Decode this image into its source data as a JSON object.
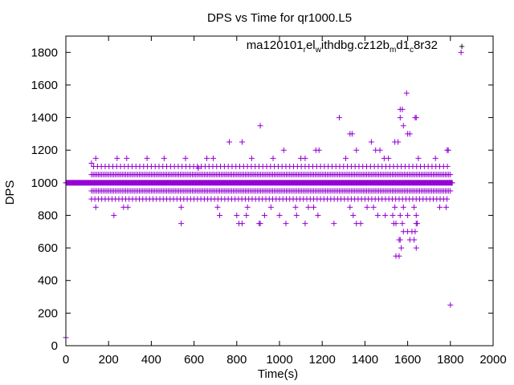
{
  "chart_data": {
    "type": "scatter",
    "title": "DPS vs Time for qr1000.L5",
    "xlabel": "Time(s)",
    "ylabel": "DPS",
    "xlim": [
      0,
      2000
    ],
    "ylim": [
      0,
      1900
    ],
    "xticks": [
      0,
      200,
      400,
      600,
      800,
      1000,
      1200,
      1400,
      1600,
      1800,
      2000
    ],
    "yticks": [
      0,
      200,
      400,
      600,
      800,
      1000,
      1200,
      1400,
      1600,
      1800
    ],
    "grid": false,
    "legend_position": "top-right",
    "marker": "+",
    "color": "#9400d3",
    "series": [
      {
        "name": "ma120101_rel_withdbg.cz12b_md1_c8r32",
        "legend_parts": [
          "ma120101",
          "r",
          "el",
          "w",
          "ithdbg.cz12b",
          "m",
          "d1",
          "c",
          "8r32"
        ],
        "points": [
          [
            0,
            50
          ],
          [
            1850,
            1800
          ],
          [
            1800,
            250
          ],
          [
            1595,
            1550
          ],
          [
            1565,
            1450
          ],
          [
            1575,
            1450
          ],
          [
            1565,
            1400
          ],
          [
            1635,
            1400
          ],
          [
            1640,
            1400
          ],
          [
            1280,
            1400
          ],
          [
            910,
            1350
          ],
          [
            1330,
            1300
          ],
          [
            1340,
            1300
          ],
          [
            1580,
            1350
          ],
          [
            1600,
            1300
          ],
          [
            1610,
            1300
          ],
          [
            765,
            1250
          ],
          [
            825,
            1250
          ],
          [
            1430,
            1250
          ],
          [
            1540,
            1250
          ],
          [
            1555,
            1250
          ],
          [
            1020,
            1200
          ],
          [
            1170,
            1200
          ],
          [
            1185,
            1200
          ],
          [
            1360,
            1200
          ],
          [
            1450,
            1200
          ],
          [
            1470,
            1200
          ],
          [
            1785,
            1200
          ],
          [
            1790,
            1200
          ],
          [
            140,
            1150
          ],
          [
            240,
            1150
          ],
          [
            285,
            1150
          ],
          [
            380,
            1150
          ],
          [
            460,
            1150
          ],
          [
            560,
            1150
          ],
          [
            660,
            1150
          ],
          [
            690,
            1150
          ],
          [
            870,
            1150
          ],
          [
            970,
            1150
          ],
          [
            1100,
            1150
          ],
          [
            1120,
            1150
          ],
          [
            1310,
            1150
          ],
          [
            1490,
            1150
          ],
          [
            1510,
            1150
          ],
          [
            1650,
            1150
          ],
          [
            1730,
            1150
          ],
          [
            120,
            1120
          ],
          [
            620,
            1090
          ],
          [
            140,
            850
          ],
          [
            270,
            850
          ],
          [
            290,
            850
          ],
          [
            540,
            850
          ],
          [
            710,
            850
          ],
          [
            850,
            850
          ],
          [
            960,
            850
          ],
          [
            1075,
            850
          ],
          [
            1135,
            850
          ],
          [
            1160,
            850
          ],
          [
            1330,
            850
          ],
          [
            1410,
            850
          ],
          [
            1440,
            850
          ],
          [
            1540,
            850
          ],
          [
            1580,
            850
          ],
          [
            1630,
            850
          ],
          [
            1750,
            850
          ],
          [
            1780,
            850
          ],
          [
            225,
            800
          ],
          [
            720,
            800
          ],
          [
            800,
            800
          ],
          [
            845,
            800
          ],
          [
            930,
            800
          ],
          [
            1000,
            800
          ],
          [
            1080,
            800
          ],
          [
            1180,
            800
          ],
          [
            1345,
            800
          ],
          [
            1460,
            800
          ],
          [
            1495,
            800
          ],
          [
            1530,
            800
          ],
          [
            1565,
            800
          ],
          [
            1600,
            800
          ],
          [
            1640,
            800
          ],
          [
            540,
            750
          ],
          [
            810,
            750
          ],
          [
            825,
            750
          ],
          [
            905,
            750
          ],
          [
            910,
            750
          ],
          [
            1030,
            750
          ],
          [
            1120,
            750
          ],
          [
            1255,
            750
          ],
          [
            1360,
            750
          ],
          [
            1380,
            750
          ],
          [
            1535,
            750
          ],
          [
            1545,
            750
          ],
          [
            1575,
            750
          ],
          [
            1640,
            750
          ],
          [
            1645,
            750
          ],
          [
            1580,
            700
          ],
          [
            1600,
            700
          ],
          [
            1620,
            700
          ],
          [
            1635,
            700
          ],
          [
            1560,
            650
          ],
          [
            1565,
            650
          ],
          [
            1610,
            650
          ],
          [
            1630,
            650
          ],
          [
            1570,
            600
          ],
          [
            1640,
            600
          ],
          [
            1545,
            550
          ],
          [
            1560,
            550
          ]
        ],
        "bands": [
          {
            "y": 1000,
            "x_start": 0,
            "x_end": 1810,
            "step": 3
          },
          {
            "y": 950,
            "x_start": 120,
            "x_end": 1805,
            "step": 8
          },
          {
            "y": 1050,
            "x_start": 120,
            "x_end": 1805,
            "step": 8
          },
          {
            "y": 900,
            "x_start": 120,
            "x_end": 1795,
            "step": 16
          },
          {
            "y": 1100,
            "x_start": 130,
            "x_end": 1795,
            "step": 18
          }
        ]
      }
    ]
  }
}
